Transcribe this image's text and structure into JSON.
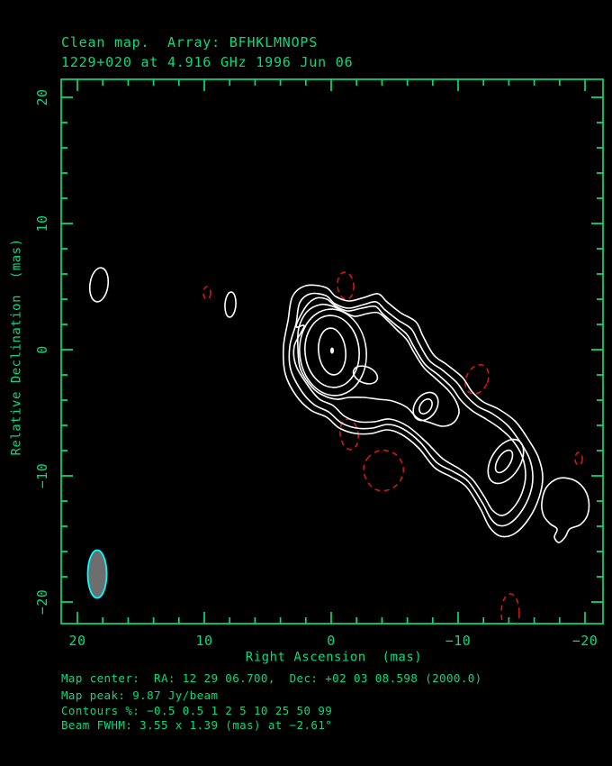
{
  "title": {
    "line1": "Clean map.  Array: BFHKLMNOPS",
    "line2": "1229+020 at 4.916 GHz 1996 Jun 06"
  },
  "axes": {
    "x": {
      "label": "Right Ascension  (mas)",
      "tick_labels": [
        "20",
        "10",
        "0",
        "−10",
        "−20"
      ],
      "tick_values": [
        20,
        10,
        0,
        -10,
        -20
      ],
      "minor_step_mas": 2,
      "range_mas": [
        21.3,
        -21.4
      ]
    },
    "y": {
      "label": "Relative Declination  (mas)",
      "tick_labels": [
        "20",
        "10",
        "0",
        "−10",
        "−20"
      ],
      "tick_values": [
        20,
        10,
        0,
        -10,
        -20
      ],
      "minor_step_mas": 2,
      "range_mas": [
        21.4,
        -21.7
      ]
    }
  },
  "footer": {
    "line1": "Map center:  RA: 12 29 06.700,  Dec: +02 03 08.598 (2000.0)",
    "line2": "Map peak: 9.87 Jy/beam",
    "line3": "Contours %: −0.5 0.5 1 2 5 10 25 50 99",
    "line4": "Beam FWHM: 3.55 x 1.39 (mas) at −2.61°"
  },
  "colors": {
    "background": "#000000",
    "foreground_green": "#00dd80",
    "contour_positive": "#ffffff",
    "contour_negative": "#d81414",
    "beam_outline": "#00ffff",
    "beam_fill": "#6e6e6e"
  },
  "chart_data": {
    "type": "contour",
    "title": "Clean map.  Array: BFHKLMNOPS",
    "subtitle": "1229+020 at 4.916 GHz 1996 Jun 06",
    "xlabel": "Right Ascension  (mas)",
    "ylabel": "Relative Declination  (mas)",
    "xlim": [
      21.3,
      -21.4
    ],
    "ylim": [
      -21.7,
      21.4
    ],
    "map_peak_jy_per_beam": 9.87,
    "contour_levels_percent": [
      -0.5,
      0.5,
      1,
      2,
      5,
      10,
      25,
      50,
      99
    ],
    "map_center": "RA: 12 29 06.700, Dec: +02 03 08.598 (2000.0)",
    "beam": {
      "fwhm_major_mas": 3.55,
      "fwhm_minor_mas": 1.39,
      "position_angle_deg": -2.61
    },
    "positive_features": [
      {
        "name": "core-peak",
        "ra_mas": 0.0,
        "dec_mas": 0.0,
        "note": "peak 9.87 Jy/beam, nested contours to 99%"
      },
      {
        "name": "inner-jet-bridge",
        "ra_mas": -3.3,
        "dec_mas": -1.7
      },
      {
        "name": "jet-knot-1",
        "ra_mas": -7.3,
        "dec_mas": -4.5
      },
      {
        "name": "jet-knot-2",
        "ra_mas": -13.7,
        "dec_mas": -8.7
      },
      {
        "name": "outer-lobe-detached",
        "ra_mas": -18.4,
        "dec_mas": -12.6
      },
      {
        "name": "background-blob-1",
        "ra_mas": 18.3,
        "dec_mas": 5.1
      },
      {
        "name": "background-blob-2",
        "ra_mas": 7.9,
        "dec_mas": 3.5
      }
    ],
    "negative_features": [
      {
        "name": "neg-above-core",
        "ra_mas": -1.1,
        "dec_mas": 5.0
      },
      {
        "name": "neg-top-left",
        "ra_mas": 9.8,
        "dec_mas": 4.5
      },
      {
        "name": "neg-mid-right",
        "ra_mas": -11.5,
        "dec_mas": -2.4
      },
      {
        "name": "neg-below-core",
        "ra_mas": -1.4,
        "dec_mas": -6.7
      },
      {
        "name": "neg-south-large",
        "ra_mas": -4.4,
        "dec_mas": -9.5
      },
      {
        "name": "neg-right-edge",
        "ra_mas": -19.5,
        "dec_mas": -8.6
      },
      {
        "name": "neg-bottom-edge",
        "ra_mas": -14.1,
        "dec_mas": -20.9
      }
    ]
  }
}
